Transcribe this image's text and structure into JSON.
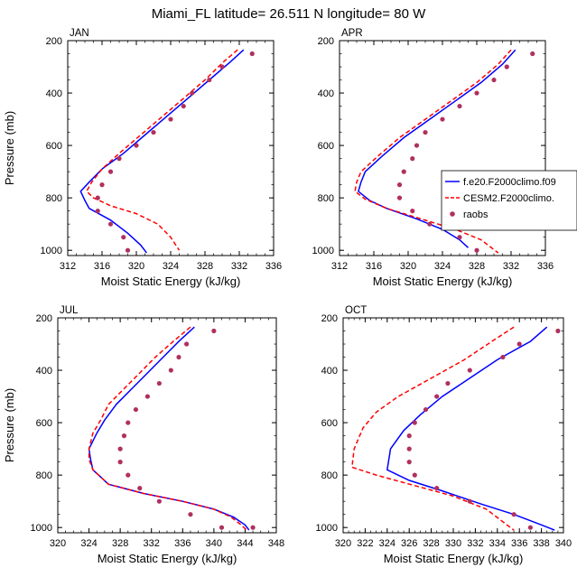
{
  "figure_title": "Miami_FL  latitude= 26.511 N longitude= 80 W",
  "colors": {
    "blue": "#0000ff",
    "red": "#ff0000",
    "marker": "#b03060"
  },
  "legend": {
    "placement": "right-center of APR panel",
    "entries": [
      "f.e20.F2000climo.f09",
      "CESM2.F2000climo.",
      "raobs"
    ]
  },
  "chart_data": [
    {
      "type": "line",
      "label": "JAN",
      "xlabel": "Moist Static Energy (kJ/kg)",
      "ylabel": "Pressure (mb)",
      "xlim": [
        312,
        336
      ],
      "ylim": [
        1020,
        200
      ],
      "xticks": [
        312,
        316,
        320,
        324,
        328,
        332,
        336
      ],
      "yticks": [
        200,
        400,
        600,
        800,
        1000
      ],
      "grid": false,
      "series": [
        {
          "name": "f.e20.F2000climo.f09",
          "style": "solid",
          "color": "#0000ff",
          "points": [
            [
              332.5,
              235
            ],
            [
              331,
              280
            ],
            [
              328.5,
              350
            ],
            [
              326,
              420
            ],
            [
              323.5,
              490
            ],
            [
              321,
              560
            ],
            [
              318.5,
              630
            ],
            [
              316,
              690
            ],
            [
              314.5,
              740
            ],
            [
              313.5,
              775
            ],
            [
              314,
              810
            ],
            [
              314.5,
              840
            ],
            [
              317,
              885
            ],
            [
              319,
              935
            ],
            [
              320.5,
              980
            ],
            [
              321.2,
              1010
            ]
          ]
        },
        {
          "name": "CESM2.F2000climo.",
          "style": "dashed",
          "color": "#ff0000",
          "points": [
            [
              331.8,
              235
            ],
            [
              330.2,
              280
            ],
            [
              328,
              350
            ],
            [
              325.5,
              420
            ],
            [
              323,
              490
            ],
            [
              320.5,
              560
            ],
            [
              318,
              630
            ],
            [
              316,
              690
            ],
            [
              314.8,
              740
            ],
            [
              314.2,
              775
            ],
            [
              315,
              800
            ],
            [
              317,
              830
            ],
            [
              320,
              860
            ],
            [
              322.5,
              900
            ],
            [
              324,
              950
            ],
            [
              325,
              1000
            ]
          ]
        },
        {
          "name": "raobs",
          "style": "marker",
          "color": "#b03060",
          "points": [
            [
              333.5,
              250
            ],
            [
              330,
              300
            ],
            [
              328.5,
              350
            ],
            [
              326.5,
              400
            ],
            [
              325.5,
              450
            ],
            [
              324,
              500
            ],
            [
              322,
              550
            ],
            [
              320,
              600
            ],
            [
              318,
              650
            ],
            [
              317,
              700
            ],
            [
              316,
              750
            ],
            [
              315.5,
              800
            ],
            [
              315.5,
              850
            ],
            [
              317,
              900
            ],
            [
              318.5,
              950
            ],
            [
              319,
              1000
            ]
          ]
        }
      ]
    },
    {
      "type": "line",
      "label": "APR",
      "xlabel": "Moist Static Energy (kJ/kg)",
      "ylabel": "",
      "xlim": [
        312,
        336
      ],
      "ylim": [
        1020,
        200
      ],
      "xticks": [
        312,
        316,
        320,
        324,
        328,
        332,
        336
      ],
      "yticks": [
        200,
        400,
        600,
        800,
        1000
      ],
      "grid": false,
      "series": [
        {
          "name": "f.e20.F2000climo.f09",
          "style": "solid",
          "color": "#0000ff",
          "points": [
            [
              332.5,
              235
            ],
            [
              331,
              290
            ],
            [
              328.5,
              360
            ],
            [
              325.5,
              430
            ],
            [
              322.5,
              500
            ],
            [
              319.5,
              570
            ],
            [
              317,
              640
            ],
            [
              315,
              700
            ],
            [
              314.5,
              740
            ],
            [
              314.2,
              775
            ],
            [
              315.5,
              810
            ],
            [
              317.5,
              840
            ],
            [
              321,
              880
            ],
            [
              324,
              920
            ],
            [
              326,
              960
            ],
            [
              327,
              990
            ]
          ]
        },
        {
          "name": "CESM2.F2000climo.",
          "style": "dashed",
          "color": "#ff0000",
          "points": [
            [
              332,
              235
            ],
            [
              330.5,
              290
            ],
            [
              328,
              360
            ],
            [
              325,
              430
            ],
            [
              322,
              500
            ],
            [
              319,
              570
            ],
            [
              316.5,
              640
            ],
            [
              314.5,
              700
            ],
            [
              314,
              740
            ],
            [
              313.8,
              775
            ],
            [
              315,
              805
            ],
            [
              317.5,
              840
            ],
            [
              321.5,
              880
            ],
            [
              325.5,
              920
            ],
            [
              328.5,
              960
            ],
            [
              330.5,
              1010
            ]
          ]
        },
        {
          "name": "raobs",
          "style": "marker",
          "color": "#b03060",
          "points": [
            [
              334.5,
              250
            ],
            [
              331.5,
              300
            ],
            [
              330,
              350
            ],
            [
              328,
              400
            ],
            [
              326,
              450
            ],
            [
              324,
              500
            ],
            [
              322,
              550
            ],
            [
              321,
              600
            ],
            [
              320.5,
              650
            ],
            [
              319.5,
              700
            ],
            [
              319,
              750
            ],
            [
              319,
              800
            ],
            [
              320.5,
              850
            ],
            [
              322.5,
              900
            ],
            [
              326,
              950
            ],
            [
              328,
              1000
            ]
          ]
        }
      ]
    },
    {
      "type": "line",
      "label": "JUL",
      "xlabel": "Moist Static Energy (kJ/kg)",
      "ylabel": "Pressure (mb)",
      "xlim": [
        320,
        348
      ],
      "ylim": [
        1020,
        200
      ],
      "xticks": [
        320,
        324,
        328,
        332,
        336,
        340,
        344,
        348
      ],
      "yticks": [
        200,
        400,
        600,
        800,
        1000
      ],
      "grid": false,
      "series": [
        {
          "name": "f.e20.F2000climo.f09",
          "style": "solid",
          "color": "#0000ff",
          "points": [
            [
              337.5,
              235
            ],
            [
              335.5,
              290
            ],
            [
              333.5,
              350
            ],
            [
              331.5,
              410
            ],
            [
              329.5,
              470
            ],
            [
              327.5,
              530
            ],
            [
              326,
              590
            ],
            [
              325,
              640
            ],
            [
              324,
              700
            ],
            [
              324.2,
              740
            ],
            [
              324.5,
              780
            ],
            [
              326.5,
              835
            ],
            [
              331,
              870
            ],
            [
              336,
              900
            ],
            [
              340,
              930
            ],
            [
              342.5,
              960
            ],
            [
              344,
              990
            ],
            [
              344.5,
              1010
            ]
          ]
        },
        {
          "name": "CESM2.F2000climo.",
          "style": "dashed",
          "color": "#ff0000",
          "points": [
            [
              337,
              235
            ],
            [
              334.8,
              290
            ],
            [
              332.5,
              350
            ],
            [
              330.5,
              410
            ],
            [
              328.5,
              470
            ],
            [
              326.5,
              530
            ],
            [
              325.5,
              590
            ],
            [
              324.5,
              640
            ],
            [
              324,
              700
            ],
            [
              324,
              740
            ],
            [
              324.5,
              780
            ],
            [
              326.5,
              835
            ],
            [
              331,
              870
            ],
            [
              336,
              900
            ],
            [
              340,
              930
            ],
            [
              342.2,
              960
            ],
            [
              343.5,
              990
            ],
            [
              344.2,
              1010
            ]
          ]
        },
        {
          "name": "raobs",
          "style": "marker",
          "color": "#b03060",
          "points": [
            [
              340,
              250
            ],
            [
              336.5,
              300
            ],
            [
              335.5,
              350
            ],
            [
              334.5,
              400
            ],
            [
              333,
              450
            ],
            [
              331.5,
              500
            ],
            [
              330,
              550
            ],
            [
              329,
              600
            ],
            [
              328.5,
              650
            ],
            [
              328,
              700
            ],
            [
              328,
              750
            ],
            [
              329,
              800
            ],
            [
              330.5,
              850
            ],
            [
              333,
              900
            ],
            [
              337,
              950
            ],
            [
              341,
              1000
            ],
            [
              345,
              1000
            ]
          ]
        }
      ]
    },
    {
      "type": "line",
      "label": "OCT",
      "xlabel": "Moist Static Energy (kJ/kg)",
      "ylabel": "",
      "xlim": [
        320,
        340
      ],
      "ylim": [
        1020,
        200
      ],
      "xticks": [
        320,
        322,
        324,
        326,
        328,
        330,
        332,
        334,
        336,
        338,
        340
      ],
      "yticks": [
        200,
        400,
        600,
        800,
        1000
      ],
      "grid": false,
      "series": [
        {
          "name": "f.e20.F2000climo.f09",
          "style": "solid",
          "color": "#0000ff",
          "points": [
            [
              338.5,
              235
            ],
            [
              337,
              290
            ],
            [
              334,
              360
            ],
            [
              331.5,
              430
            ],
            [
              329,
              500
            ],
            [
              327,
              570
            ],
            [
              325.5,
              630
            ],
            [
              324.3,
              700
            ],
            [
              324,
              780
            ],
            [
              326,
              820
            ],
            [
              329,
              860
            ],
            [
              332.5,
              910
            ],
            [
              335.5,
              950
            ],
            [
              338,
              990
            ],
            [
              339.2,
              1010
            ]
          ]
        },
        {
          "name": "CESM2.F2000climo.",
          "style": "dashed",
          "color": "#ff0000",
          "points": [
            [
              335.5,
              235
            ],
            [
              333.5,
              290
            ],
            [
              331,
              360
            ],
            [
              328,
              430
            ],
            [
              325,
              500
            ],
            [
              323,
              560
            ],
            [
              321.8,
              620
            ],
            [
              321,
              700
            ],
            [
              320.8,
              770
            ],
            [
              323,
              800
            ],
            [
              326.5,
              840
            ],
            [
              330,
              880
            ],
            [
              333,
              930
            ],
            [
              335.5,
              1010
            ]
          ]
        },
        {
          "name": "raobs",
          "style": "marker",
          "color": "#b03060",
          "points": [
            [
              339.5,
              250
            ],
            [
              336,
              300
            ],
            [
              334.5,
              350
            ],
            [
              331.5,
              400
            ],
            [
              329.5,
              450
            ],
            [
              328.5,
              500
            ],
            [
              327.5,
              550
            ],
            [
              326.5,
              600
            ],
            [
              326,
              650
            ],
            [
              326,
              700
            ],
            [
              326,
              750
            ],
            [
              326.5,
              800
            ],
            [
              328.5,
              850
            ],
            [
              331.5,
              900
            ],
            [
              335.5,
              950
            ],
            [
              337,
              1000
            ]
          ]
        }
      ]
    }
  ]
}
